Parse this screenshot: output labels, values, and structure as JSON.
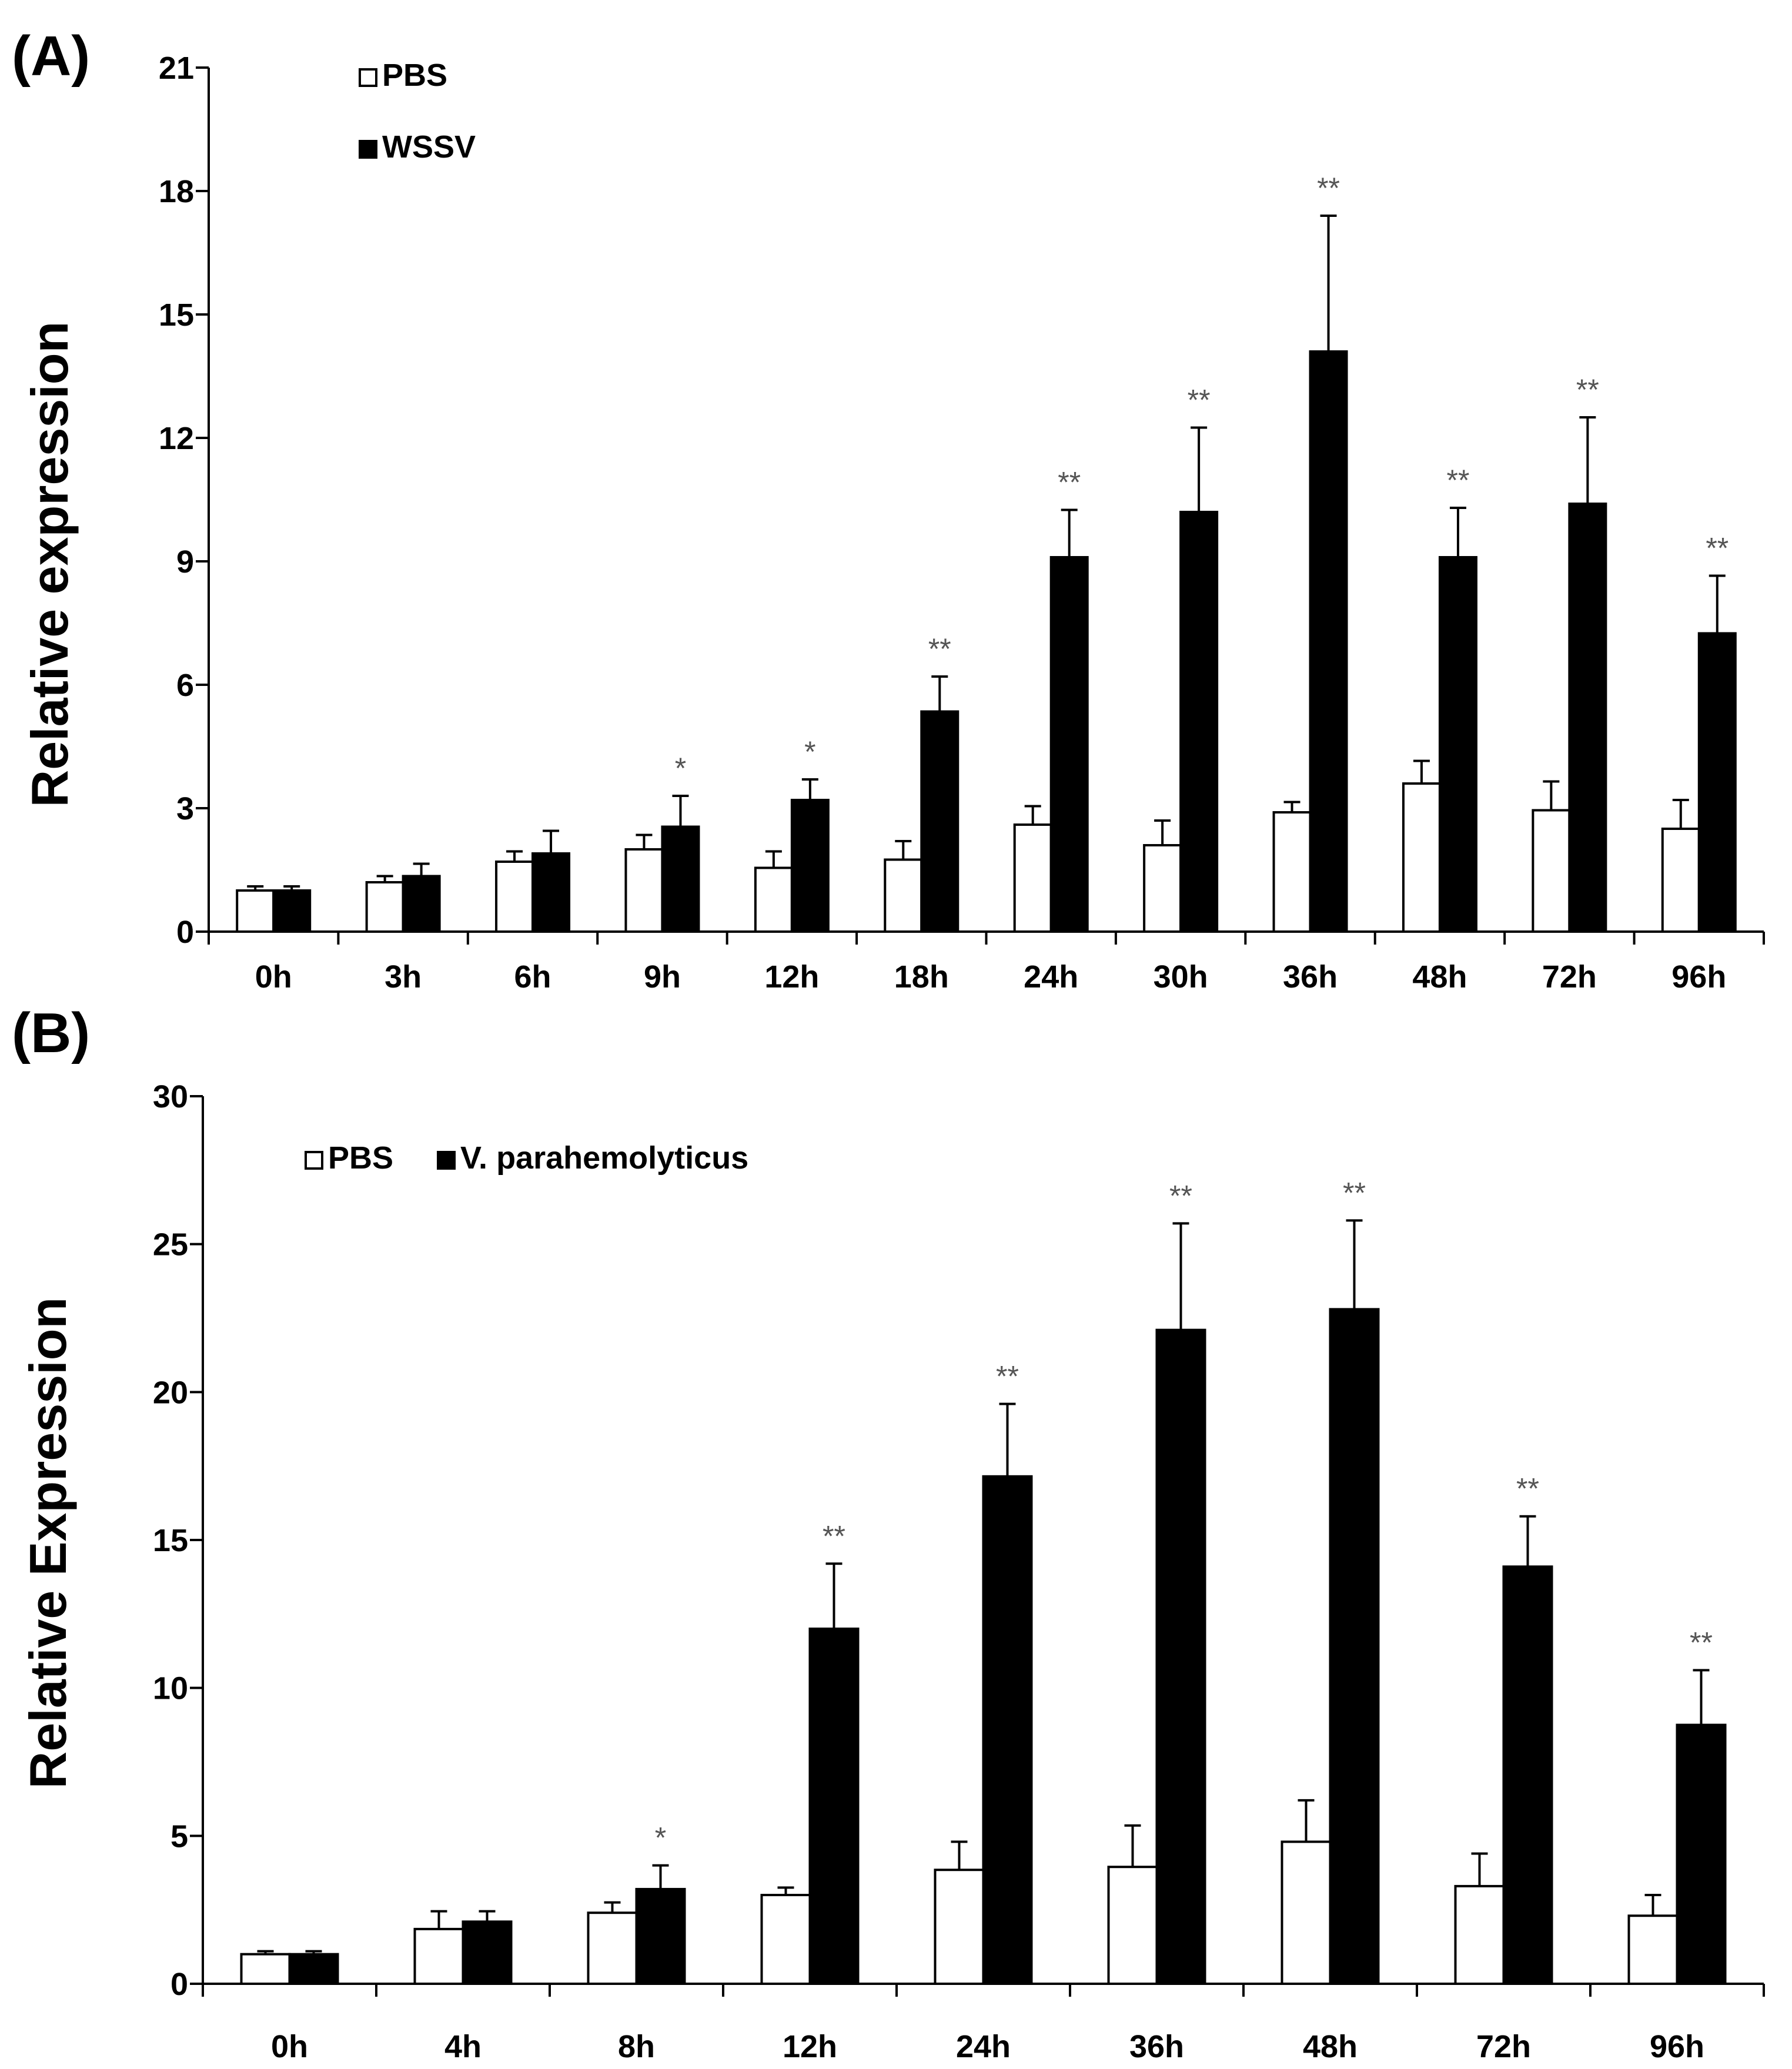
{
  "figure": {
    "colors": {
      "control": "#ffffff",
      "treatment": "#000000",
      "axis": "#000000",
      "significance": "#555555"
    },
    "panels": [
      {
        "label": "(A)"
      },
      {
        "label": "(B)"
      }
    ]
  },
  "chart_data": [
    {
      "type": "bar",
      "panel": "(A)",
      "title": "",
      "xlabel": "",
      "ylabel": "Relative expression",
      "ylim": [
        0,
        21
      ],
      "yticks": [
        0,
        3,
        6,
        9,
        12,
        15,
        18,
        21
      ],
      "grid": false,
      "legend_position": "top-left",
      "categories": [
        "0h",
        "3h",
        "6h",
        "9h",
        "12h",
        "18h",
        "24h",
        "30h",
        "36h",
        "48h",
        "72h",
        "96h"
      ],
      "series": [
        {
          "name": "PBS",
          "color": "#ffffff",
          "values": [
            1.0,
            1.2,
            1.7,
            2.0,
            1.55,
            1.75,
            2.6,
            2.1,
            2.9,
            3.6,
            2.95,
            2.5
          ],
          "errors": [
            0.1,
            0.15,
            0.25,
            0.35,
            0.4,
            0.45,
            0.45,
            0.6,
            0.25,
            0.55,
            0.7,
            0.7
          ]
        },
        {
          "name": "WSSV",
          "color": "#000000",
          "values": [
            1.0,
            1.35,
            1.9,
            2.55,
            3.2,
            5.35,
            9.1,
            10.2,
            14.1,
            9.1,
            10.4,
            7.25
          ],
          "errors": [
            0.1,
            0.3,
            0.55,
            0.75,
            0.5,
            0.85,
            1.15,
            2.05,
            3.3,
            1.2,
            2.1,
            1.4
          ],
          "significance": [
            "",
            "",
            "",
            "*",
            "*",
            "**",
            "**",
            "**",
            "**",
            "**",
            "**",
            "**"
          ]
        }
      ]
    },
    {
      "type": "bar",
      "panel": "(B)",
      "title": "",
      "xlabel": "",
      "ylabel": "Relative Expression",
      "ylim": [
        0,
        30
      ],
      "yticks": [
        0,
        5,
        10,
        15,
        20,
        25,
        30
      ],
      "grid": false,
      "legend_position": "top-left",
      "categories": [
        "0h",
        "4h",
        "8h",
        "12h",
        "24h",
        "36h",
        "48h",
        "72h",
        "96h"
      ],
      "series": [
        {
          "name": "PBS",
          "color": "#ffffff",
          "values": [
            1.0,
            1.85,
            2.4,
            3.0,
            3.85,
            3.95,
            4.8,
            3.3,
            2.3
          ],
          "errors": [
            0.1,
            0.6,
            0.35,
            0.25,
            0.95,
            1.4,
            1.4,
            1.1,
            0.7
          ]
        },
        {
          "name": "V. parahemolyticus",
          "color": "#000000",
          "values": [
            1.0,
            2.1,
            3.2,
            12.0,
            17.15,
            22.1,
            22.8,
            14.1,
            8.75
          ],
          "errors": [
            0.1,
            0.35,
            0.8,
            2.2,
            2.45,
            3.6,
            3.0,
            1.7,
            1.85
          ],
          "significance": [
            "",
            "",
            "*",
            "**",
            "**",
            "**",
            "**",
            "**",
            "**"
          ]
        }
      ]
    }
  ]
}
